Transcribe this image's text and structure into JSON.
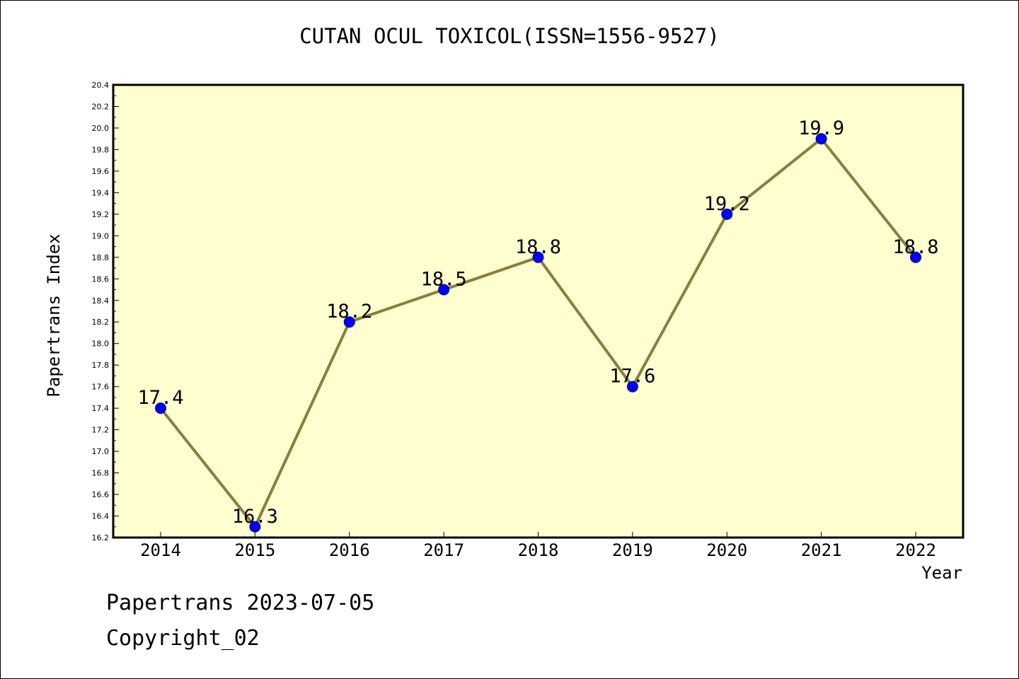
{
  "chart_data": {
    "type": "line",
    "title": "CUTAN OCUL TOXICOL(ISSN=1556-9527)",
    "xlabel": "Year",
    "ylabel": "Papertrans Index",
    "categories": [
      "2014",
      "2015",
      "2016",
      "2017",
      "2018",
      "2019",
      "2020",
      "2021",
      "2022"
    ],
    "values": [
      17.4,
      16.3,
      18.2,
      18.5,
      18.8,
      17.6,
      19.2,
      19.9,
      18.8
    ],
    "data_labels": [
      "17.4",
      "16.3",
      "18.2",
      "18.5",
      "18.8",
      "17.6",
      "19.2",
      "19.9",
      "18.8"
    ],
    "ylim": [
      16.2,
      20.4
    ],
    "yticks": [
      "16.2",
      "16.4",
      "16.6",
      "16.8",
      "17.0",
      "17.2",
      "17.4",
      "17.6",
      "17.8",
      "18.0",
      "18.2",
      "18.4",
      "18.6",
      "18.8",
      "19.0",
      "19.2",
      "19.4",
      "19.6",
      "19.8",
      "20.0",
      "20.2",
      "20.4"
    ],
    "grid": false,
    "legend": "none",
    "colors": {
      "plot_background": "#ffffd0",
      "line": "#8b7d3a",
      "marker": "#0000ff",
      "marker_edge": "#000080"
    }
  },
  "footer": {
    "source": "Papertrans 2023-07-05",
    "copyright": "Copyright_02"
  }
}
